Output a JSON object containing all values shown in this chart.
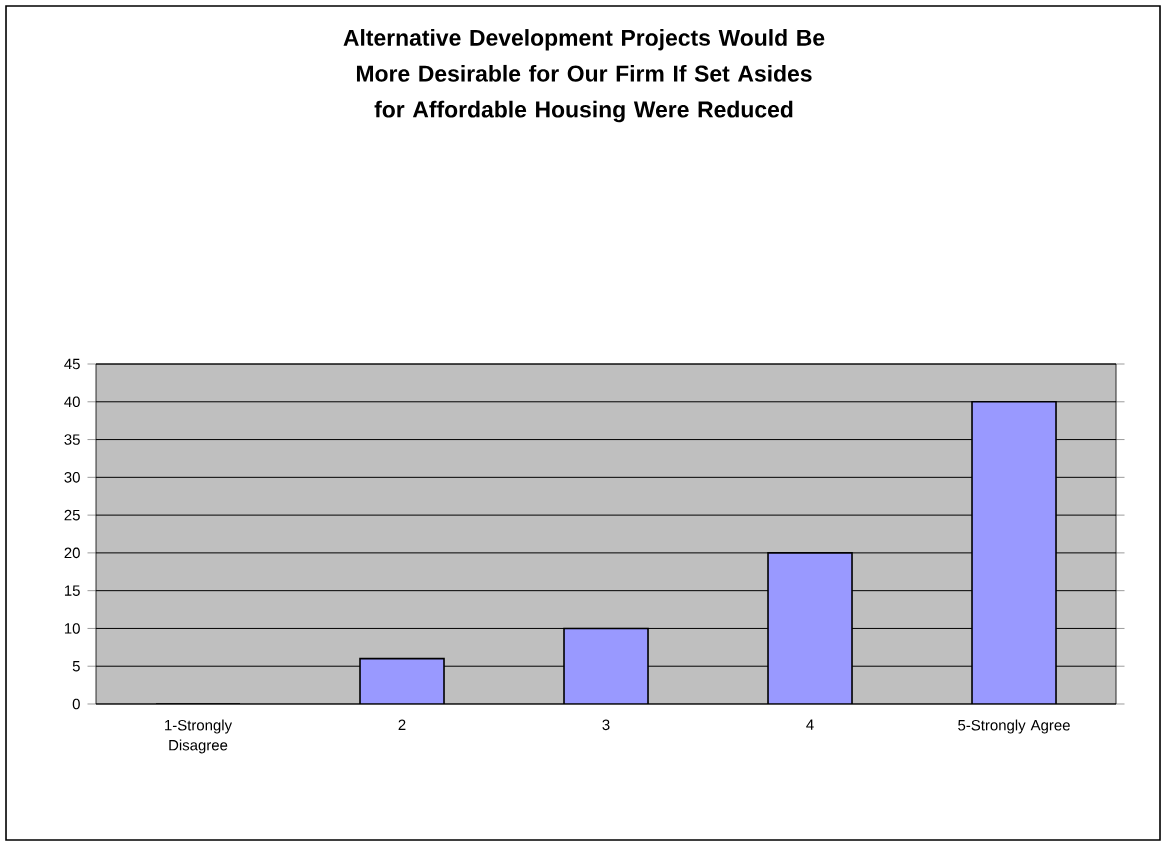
{
  "chart_data": {
    "type": "bar",
    "title": "Alternative Development Projects Would Be More Desirable for Our Firm If Set Asides for Affordable Housing Were Reduced",
    "categories": [
      "1-Strongly Disagree",
      "2",
      "3",
      "4",
      "5-Strongly Agree"
    ],
    "values": [
      0,
      6,
      10,
      20,
      40
    ],
    "color": "#9999ff",
    "ylim": [
      0,
      45
    ],
    "yticks": [
      0,
      5,
      10,
      15,
      20,
      25,
      30,
      35,
      40,
      45
    ],
    "grid": "y"
  }
}
